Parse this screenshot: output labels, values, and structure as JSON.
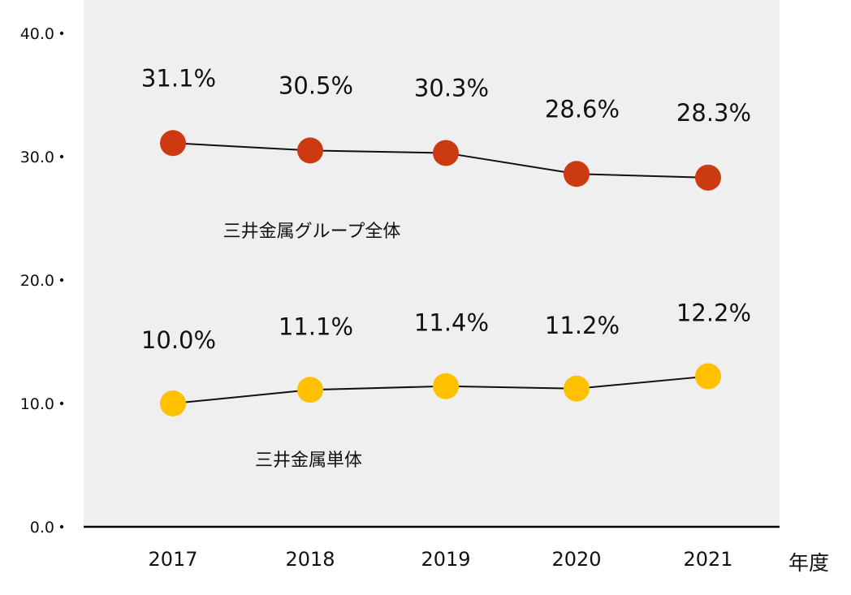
{
  "chart_data": {
    "type": "line",
    "categories": [
      "2017",
      "2018",
      "2019",
      "2020",
      "2021"
    ],
    "xlabel": "年度",
    "ylabel": "",
    "ylim": [
      0,
      40
    ],
    "yticks": [
      "0.0",
      "10.0",
      "20.0",
      "30.0",
      "40.0"
    ],
    "yticks_values": [
      0,
      10,
      20,
      30,
      40
    ],
    "grid": false,
    "plot_background": "#efefef",
    "series": [
      {
        "name": "三井金属グループ全体",
        "values": [
          31.1,
          30.5,
          30.3,
          28.6,
          28.3
        ],
        "labels": [
          "31.1%",
          "30.5%",
          "30.3%",
          "28.6%",
          "28.3%"
        ],
        "color": "#cc3a12"
      },
      {
        "name": "三井金属単体",
        "values": [
          10.0,
          11.1,
          11.4,
          11.2,
          12.2
        ],
        "labels": [
          "10.0%",
          "11.1%",
          "11.4%",
          "11.2%",
          "12.2%"
        ],
        "color": "#ffc000"
      }
    ]
  }
}
